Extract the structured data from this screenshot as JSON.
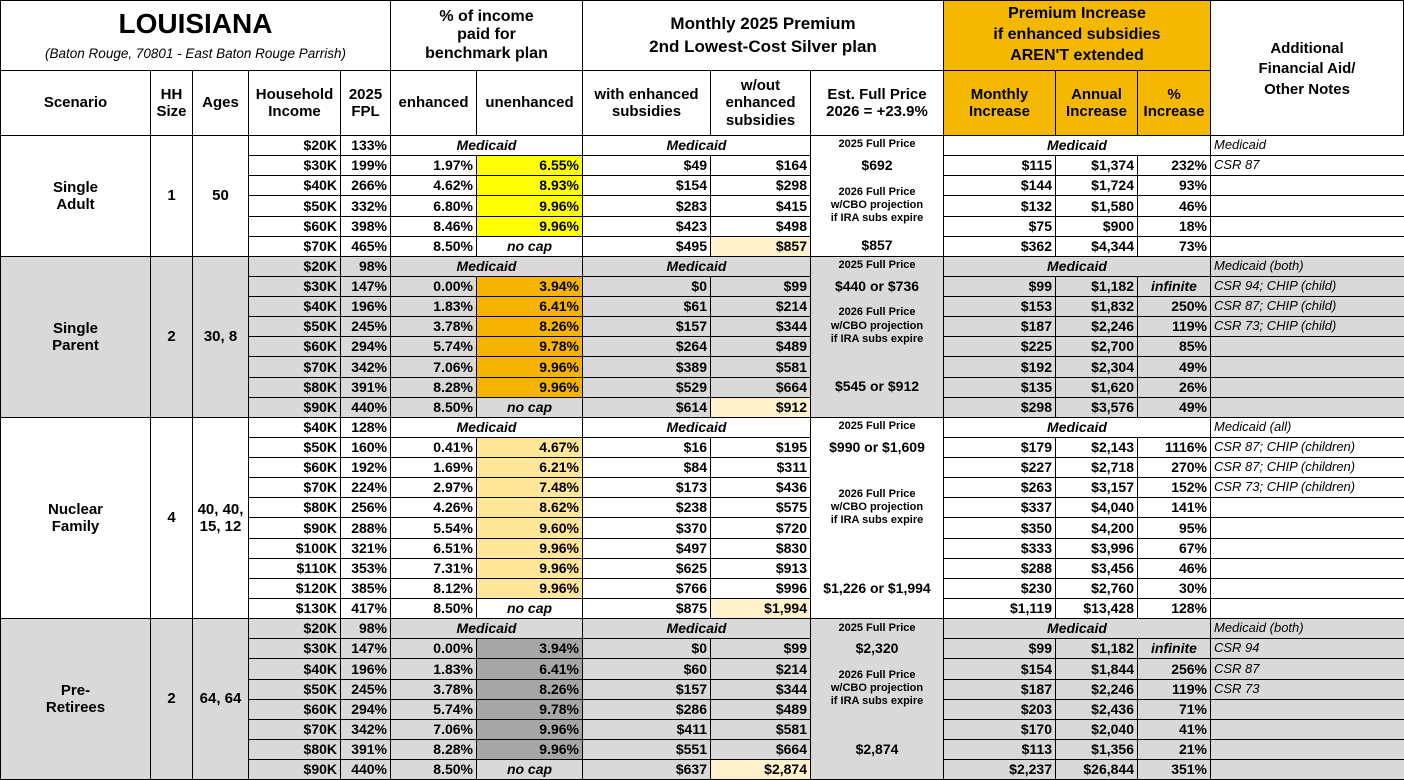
{
  "header": {
    "title": "LOUISIANA",
    "subtitle": "(Baton Rouge, 70801 - East Baton Rouge Parrish)",
    "income_pct": "% of income\npaid for\nbenchmark plan",
    "premium": "Monthly 2025 Premium\n2nd Lowest-Cost Silver plan",
    "increase": "Premium Increase\nif enhanced subsidies\nAREN'T extended",
    "notes": "Additional\nFinancial Aid/\nOther Notes"
  },
  "columns": [
    "Scenario",
    "HH\nSize",
    "Ages",
    "Household\nIncome",
    "2025\nFPL",
    "enhanced",
    "unenhanced",
    "with enhanced\nsubsidies",
    "w/out\nenhanced\nsubsidies",
    "Est. Full Price\n2026 = +23.9%",
    "Monthly\nIncrease",
    "Annual\nIncrease",
    "%\nIncrease"
  ],
  "groups": [
    {
      "scenario": "Single\nAdult",
      "hh_size": "1",
      "ages": "50",
      "full_2025_label": "2025 Full Price",
      "full_2025": "$692",
      "full_2026_label": "2026 Full Price\nw/CBO projection\nif IRA subs expire",
      "full_2026": "$857",
      "rows": [
        {
          "income": "$20K",
          "fpl": "133%",
          "pct": "Medicaid",
          "premium": "Medicaid",
          "increase": "Medicaid",
          "note": "Medicaid"
        },
        {
          "income": "$30K",
          "fpl": "199%",
          "enhanced": "1.97%",
          "unenhanced": "6.55%",
          "with": "$49",
          "without": "$164",
          "monthly": "$115",
          "annual": "$1,374",
          "pct_increase": "232%",
          "note": "CSR 87"
        },
        {
          "income": "$40K",
          "fpl": "266%",
          "enhanced": "4.62%",
          "unenhanced": "8.93%",
          "with": "$154",
          "without": "$298",
          "monthly": "$144",
          "annual": "$1,724",
          "pct_increase": "93%"
        },
        {
          "income": "$50K",
          "fpl": "332%",
          "enhanced": "6.80%",
          "unenhanced": "9.96%",
          "with": "$283",
          "without": "$415",
          "monthly": "$132",
          "annual": "$1,580",
          "pct_increase": "46%"
        },
        {
          "income": "$60K",
          "fpl": "398%",
          "enhanced": "8.46%",
          "unenhanced": "9.96%",
          "with": "$423",
          "without": "$498",
          "monthly": "$75",
          "annual": "$900",
          "pct_increase": "18%"
        },
        {
          "income": "$70K",
          "fpl": "465%",
          "enhanced": "8.50%",
          "unenhanced": "no cap",
          "with": "$495",
          "without": "$857",
          "monthly": "$362",
          "annual": "$4,344",
          "pct_increase": "73%"
        }
      ]
    },
    {
      "scenario": "Single\nParent",
      "hh_size": "2",
      "ages": "30, 8",
      "full_2025_label": "2025 Full Price",
      "full_2025": "$440 or $736",
      "full_2026_label": "2026 Full Price\nw/CBO projection\nif IRA subs expire",
      "full_2026": "$545 or $912",
      "rows": [
        {
          "income": "$20K",
          "fpl": "98%",
          "pct": "Medicaid",
          "premium": "Medicaid",
          "increase": "Medicaid",
          "note": "Medicaid (both)"
        },
        {
          "income": "$30K",
          "fpl": "147%",
          "enhanced": "0.00%",
          "unenhanced": "3.94%",
          "with": "$0",
          "without": "$99",
          "monthly": "$99",
          "annual": "$1,182",
          "pct_increase": "infinite",
          "note": "CSR 94; CHIP (child)"
        },
        {
          "income": "$40K",
          "fpl": "196%",
          "enhanced": "1.83%",
          "unenhanced": "6.41%",
          "with": "$61",
          "without": "$214",
          "monthly": "$153",
          "annual": "$1,832",
          "pct_increase": "250%",
          "note": "CSR 87; CHIP (child)"
        },
        {
          "income": "$50K",
          "fpl": "245%",
          "enhanced": "3.78%",
          "unenhanced": "8.26%",
          "with": "$157",
          "without": "$344",
          "monthly": "$187",
          "annual": "$2,246",
          "pct_increase": "119%",
          "note": "CSR 73; CHIP (child)"
        },
        {
          "income": "$60K",
          "fpl": "294%",
          "enhanced": "5.74%",
          "unenhanced": "9.78%",
          "with": "$264",
          "without": "$489",
          "monthly": "$225",
          "annual": "$2,700",
          "pct_increase": "85%"
        },
        {
          "income": "$70K",
          "fpl": "342%",
          "enhanced": "7.06%",
          "unenhanced": "9.96%",
          "with": "$389",
          "without": "$581",
          "monthly": "$192",
          "annual": "$2,304",
          "pct_increase": "49%"
        },
        {
          "income": "$80K",
          "fpl": "391%",
          "enhanced": "8.28%",
          "unenhanced": "9.96%",
          "with": "$529",
          "without": "$664",
          "monthly": "$135",
          "annual": "$1,620",
          "pct_increase": "26%"
        },
        {
          "income": "$90K",
          "fpl": "440%",
          "enhanced": "8.50%",
          "unenhanced": "no cap",
          "with": "$614",
          "without": "$912",
          "monthly": "$298",
          "annual": "$3,576",
          "pct_increase": "49%"
        }
      ]
    },
    {
      "scenario": "Nuclear\nFamily",
      "hh_size": "4",
      "ages": "40, 40,\n15, 12",
      "full_2025_label": "2025 Full Price",
      "full_2025": "$990 or $1,609",
      "full_2026_label": "2026 Full Price\nw/CBO projection\nif IRA subs expire",
      "full_2026": "$1,226 or $1,994",
      "rows": [
        {
          "income": "$40K",
          "fpl": "128%",
          "pct": "Medicaid",
          "premium": "Medicaid",
          "increase": "Medicaid",
          "note": "Medicaid (all)"
        },
        {
          "income": "$50K",
          "fpl": "160%",
          "enhanced": "0.41%",
          "unenhanced": "4.67%",
          "with": "$16",
          "without": "$195",
          "monthly": "$179",
          "annual": "$2,143",
          "pct_increase": "1116%",
          "note": "CSR 87; CHIP (children)"
        },
        {
          "income": "$60K",
          "fpl": "192%",
          "enhanced": "1.69%",
          "unenhanced": "6.21%",
          "with": "$84",
          "without": "$311",
          "monthly": "$227",
          "annual": "$2,718",
          "pct_increase": "270%",
          "note": "CSR 87; CHIP (children)"
        },
        {
          "income": "$70K",
          "fpl": "224%",
          "enhanced": "2.97%",
          "unenhanced": "7.48%",
          "with": "$173",
          "without": "$436",
          "monthly": "$263",
          "annual": "$3,157",
          "pct_increase": "152%",
          "note": "CSR 73; CHIP (children)"
        },
        {
          "income": "$80K",
          "fpl": "256%",
          "enhanced": "4.26%",
          "unenhanced": "8.62%",
          "with": "$238",
          "without": "$575",
          "monthly": "$337",
          "annual": "$4,040",
          "pct_increase": "141%"
        },
        {
          "income": "$90K",
          "fpl": "288%",
          "enhanced": "5.54%",
          "unenhanced": "9.60%",
          "with": "$370",
          "without": "$720",
          "monthly": "$350",
          "annual": "$4,200",
          "pct_increase": "95%"
        },
        {
          "income": "$100K",
          "fpl": "321%",
          "enhanced": "6.51%",
          "unenhanced": "9.96%",
          "with": "$497",
          "without": "$830",
          "monthly": "$333",
          "annual": "$3,996",
          "pct_increase": "67%"
        },
        {
          "income": "$110K",
          "fpl": "353%",
          "enhanced": "7.31%",
          "unenhanced": "9.96%",
          "with": "$625",
          "without": "$913",
          "monthly": "$288",
          "annual": "$3,456",
          "pct_increase": "46%"
        },
        {
          "income": "$120K",
          "fpl": "385%",
          "enhanced": "8.12%",
          "unenhanced": "9.96%",
          "with": "$766",
          "without": "$996",
          "monthly": "$230",
          "annual": "$2,760",
          "pct_increase": "30%"
        },
        {
          "income": "$130K",
          "fpl": "417%",
          "enhanced": "8.50%",
          "unenhanced": "no cap",
          "with": "$875",
          "without": "$1,994",
          "monthly": "$1,119",
          "annual": "$13,428",
          "pct_increase": "128%"
        }
      ]
    },
    {
      "scenario": "Pre-\nRetirees",
      "hh_size": "2",
      "ages": "64, 64",
      "full_2025_label": "2025 Full Price",
      "full_2025": "$2,320",
      "full_2026_label": "2026 Full Price\nw/CBO projection\nif IRA subs expire",
      "full_2026": "$2,874",
      "rows": [
        {
          "income": "$20K",
          "fpl": "98%",
          "pct": "Medicaid",
          "premium": "Medicaid",
          "increase": "Medicaid",
          "note": "Medicaid (both)"
        },
        {
          "income": "$30K",
          "fpl": "147%",
          "enhanced": "0.00%",
          "unenhanced": "3.94%",
          "with": "$0",
          "without": "$99",
          "monthly": "$99",
          "annual": "$1,182",
          "pct_increase": "infinite",
          "note": "CSR 94"
        },
        {
          "income": "$40K",
          "fpl": "196%",
          "enhanced": "1.83%",
          "unenhanced": "6.41%",
          "with": "$60",
          "without": "$214",
          "monthly": "$154",
          "annual": "$1,844",
          "pct_increase": "256%",
          "note": "CSR 87"
        },
        {
          "income": "$50K",
          "fpl": "245%",
          "enhanced": "3.78%",
          "unenhanced": "8.26%",
          "with": "$157",
          "without": "$344",
          "monthly": "$187",
          "annual": "$2,246",
          "pct_increase": "119%",
          "note": "CSR 73"
        },
        {
          "income": "$60K",
          "fpl": "294%",
          "enhanced": "5.74%",
          "unenhanced": "9.78%",
          "with": "$286",
          "without": "$489",
          "monthly": "$203",
          "annual": "$2,436",
          "pct_increase": "71%"
        },
        {
          "income": "$70K",
          "fpl": "342%",
          "enhanced": "7.06%",
          "unenhanced": "9.96%",
          "with": "$411",
          "without": "$581",
          "monthly": "$170",
          "annual": "$2,040",
          "pct_increase": "41%"
        },
        {
          "income": "$80K",
          "fpl": "391%",
          "enhanced": "8.28%",
          "unenhanced": "9.96%",
          "with": "$551",
          "without": "$664",
          "monthly": "$113",
          "annual": "$1,356",
          "pct_increase": "21%"
        },
        {
          "income": "$90K",
          "fpl": "440%",
          "enhanced": "8.50%",
          "unenhanced": "no cap",
          "with": "$637",
          "without": "$2,874",
          "monthly": "$2,237",
          "annual": "$26,844",
          "pct_increase": "351%"
        }
      ]
    }
  ]
}
